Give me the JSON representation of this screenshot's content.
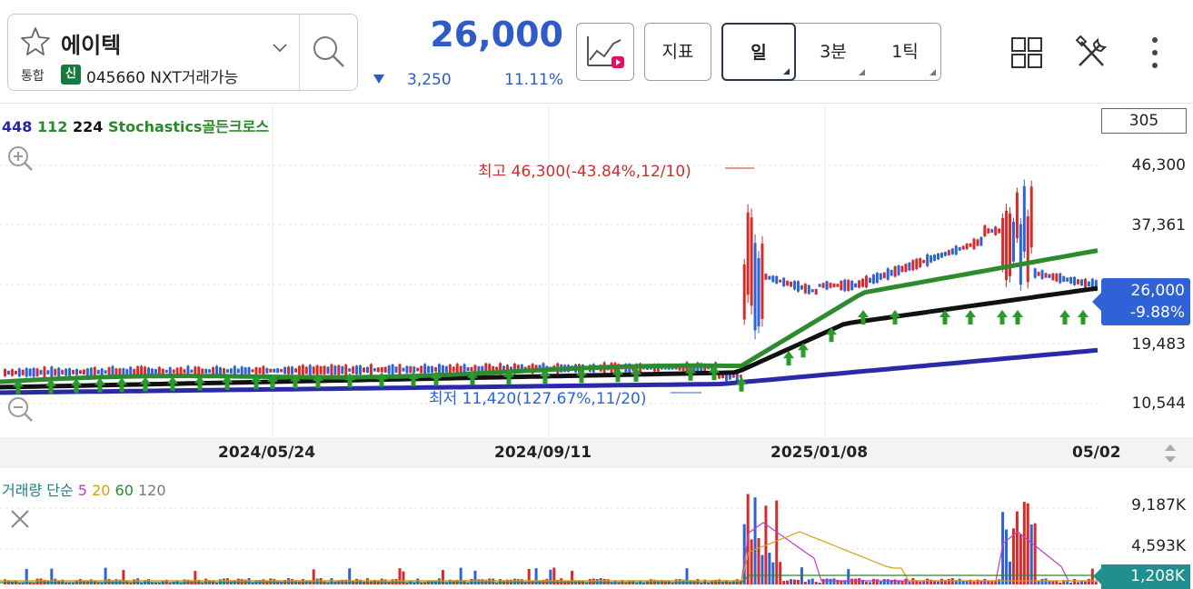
{
  "header": {
    "stock_name": "에이텍",
    "market": "통합",
    "badge": "신",
    "code_line": "045660 NXT거래가능",
    "price": "26,000",
    "change": "3,250",
    "change_pct": "11.11%",
    "indicator_button": "지표",
    "periods": [
      {
        "label": "일",
        "active": true
      },
      {
        "label": "3분",
        "active": false
      },
      {
        "label": "1틱",
        "active": false
      }
    ]
  },
  "chart": {
    "legend": {
      "ma1": "448",
      "ma2": "112",
      "ma3": "224",
      "signal": "Stochastics골든크로스"
    },
    "count": "305",
    "price_axis": [
      "46,300",
      "37,361",
      "19,483",
      "10,544"
    ],
    "current_price": "26,000",
    "current_change": "-9.88%",
    "high_annotation": "최고 46,300(-43.84%,12/10)",
    "low_annotation": "최저 11,420(127.67%,11/20)",
    "dates": [
      "2024/05/24",
      "2024/09/11",
      "2025/01/08",
      "05/02"
    ]
  },
  "volume": {
    "legend": {
      "title": "거래량 단순",
      "ma5": "5",
      "ma20": "20",
      "ma60": "60",
      "ma120": "120"
    },
    "axis": [
      "9,187K",
      "4,593K"
    ],
    "current": "1,208K"
  },
  "colors": {
    "accent_blue": "#2e5bc7",
    "up_red": "#d12d2d",
    "signal_green": "#2a8a2a",
    "ma_navy": "#2424a6"
  }
}
